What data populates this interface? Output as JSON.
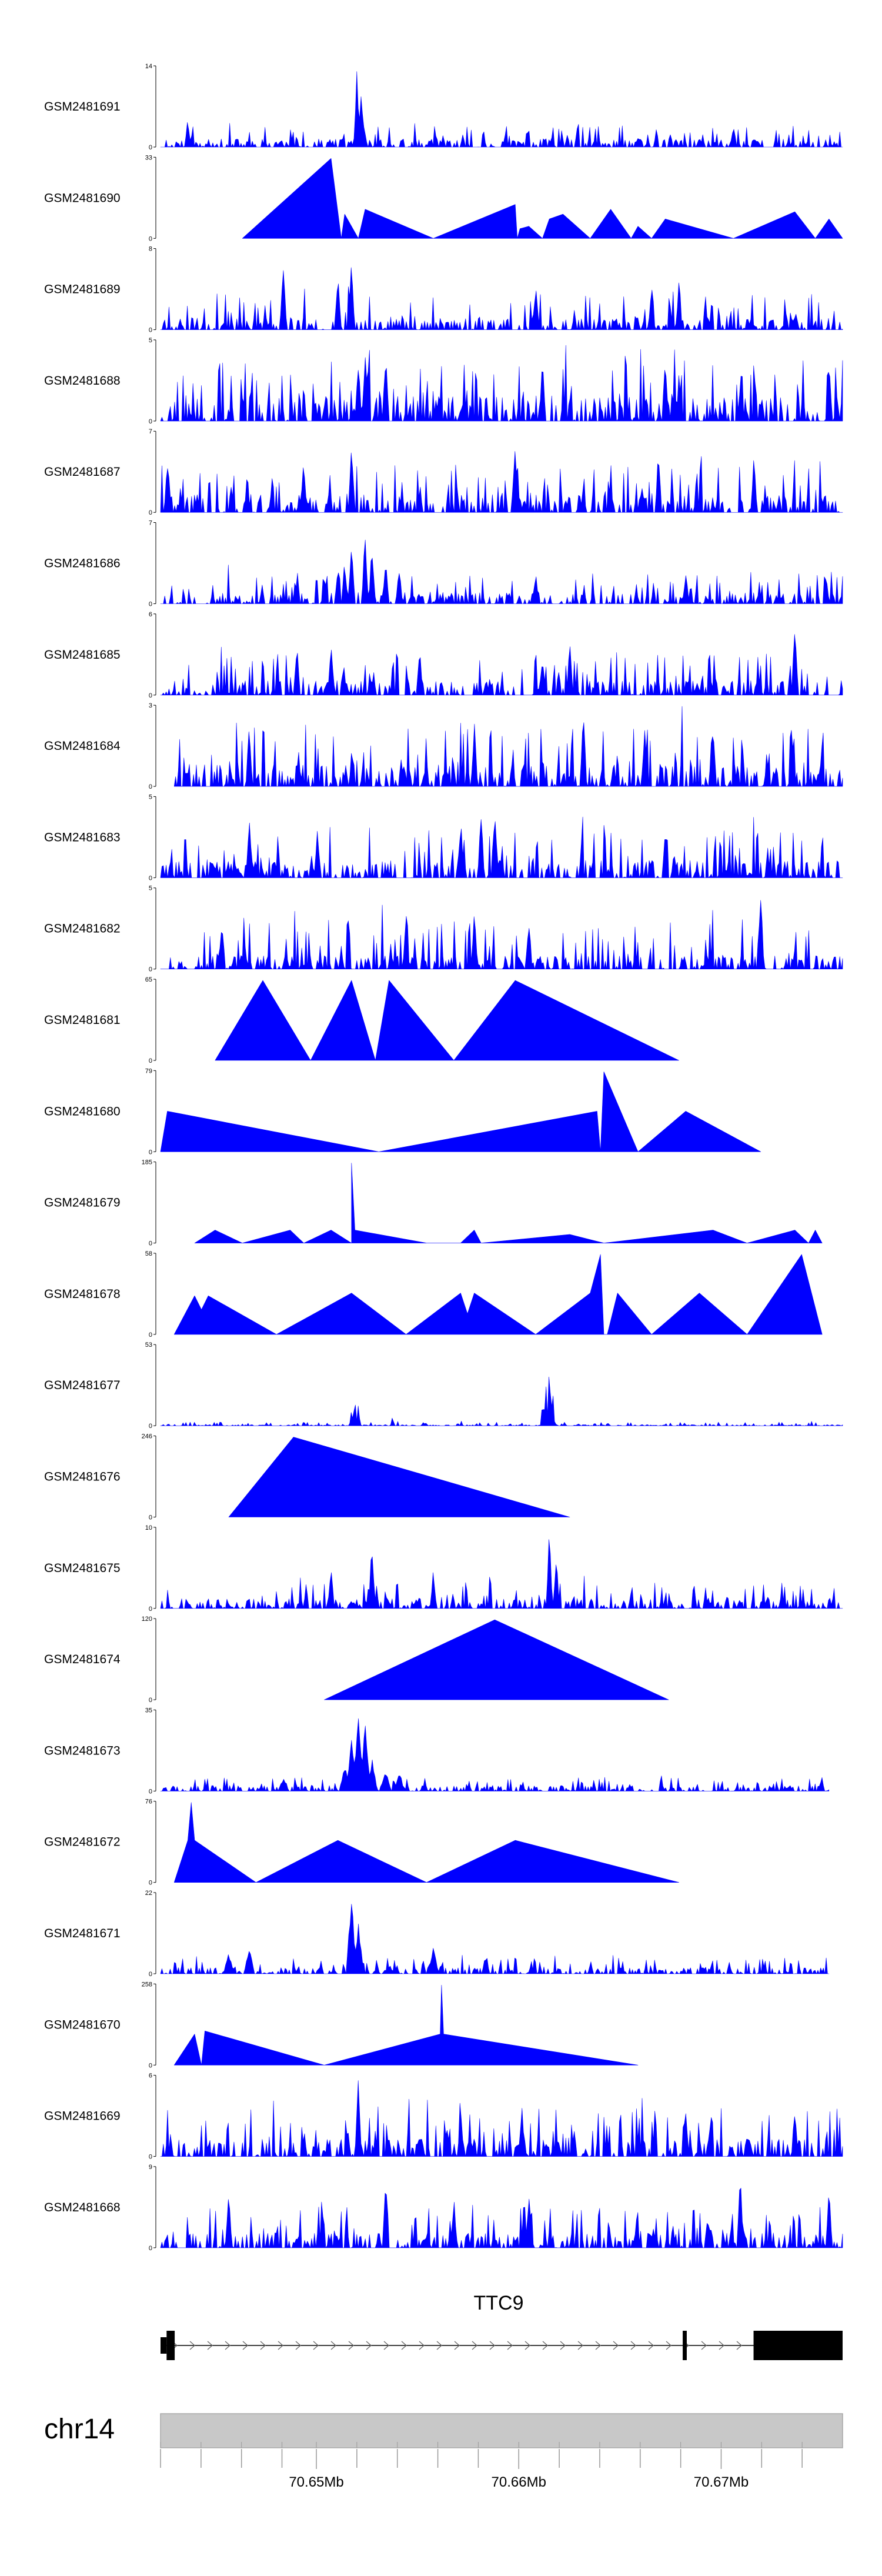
{
  "chart_data": {
    "type": "area",
    "title": "",
    "genome": {
      "chromosome": "chr14",
      "x_range_bp": [
        70642300,
        70676000
      ],
      "ticks": [
        {
          "pos": 70642300,
          "label": ""
        },
        {
          "pos": 70644300,
          "label": ""
        },
        {
          "pos": 70646300,
          "label": ""
        },
        {
          "pos": 70648300,
          "label": ""
        },
        {
          "pos": 70650000,
          "label": "70.65Mb"
        },
        {
          "pos": 70652000,
          "label": ""
        },
        {
          "pos": 70654000,
          "label": ""
        },
        {
          "pos": 70656000,
          "label": ""
        },
        {
          "pos": 70658000,
          "label": ""
        },
        {
          "pos": 70660000,
          "label": "70.66Mb"
        },
        {
          "pos": 70662000,
          "label": ""
        },
        {
          "pos": 70664000,
          "label": ""
        },
        {
          "pos": 70666000,
          "label": ""
        },
        {
          "pos": 70668000,
          "label": ""
        },
        {
          "pos": 70670000,
          "label": "70.67Mb"
        },
        {
          "pos": 70672000,
          "label": ""
        },
        {
          "pos": 70674000,
          "label": ""
        }
      ]
    },
    "gene": {
      "name": "TTC9",
      "strand": "+",
      "start": 70642300,
      "end": 70676000,
      "exons": [
        {
          "start": 70642300,
          "end": 70642600,
          "thick": false
        },
        {
          "start": 70642600,
          "end": 70643000,
          "thick": true
        },
        {
          "start": 70668100,
          "end": 70668300,
          "thick": true
        },
        {
          "start": 70671600,
          "end": 70676000,
          "thick": true
        }
      ]
    },
    "color": "#0000ff",
    "tracks": [
      {
        "name": "GSM2481691",
        "ymax": 14,
        "kind": "dense",
        "start": 0.0,
        "end": 1.0,
        "base": 1.2,
        "amp": 2.5,
        "seed": 11,
        "peaks": [
          [
            0.288,
            14
          ],
          [
            0.294,
            10
          ],
          [
            0.04,
            5
          ],
          [
            0.84,
            4
          ]
        ]
      },
      {
        "name": "GSM2481690",
        "ymax": 33,
        "kind": "sparse",
        "points": [
          [
            0.12,
            0
          ],
          [
            0.25,
            33
          ],
          [
            0.265,
            0
          ],
          [
            0.27,
            10
          ],
          [
            0.29,
            0
          ],
          [
            0.3,
            12
          ],
          [
            0.4,
            0
          ],
          [
            0.52,
            14
          ],
          [
            0.523,
            0
          ],
          [
            0.527,
            4
          ],
          [
            0.54,
            5
          ],
          [
            0.56,
            0
          ],
          [
            0.57,
            8
          ],
          [
            0.59,
            10
          ],
          [
            0.63,
            0
          ],
          [
            0.66,
            12
          ],
          [
            0.69,
            0
          ],
          [
            0.7,
            5
          ],
          [
            0.72,
            0
          ],
          [
            0.74,
            8
          ],
          [
            0.84,
            0
          ],
          [
            0.93,
            11
          ],
          [
            0.96,
            0
          ],
          [
            0.98,
            8
          ],
          [
            1.0,
            0
          ]
        ]
      },
      {
        "name": "GSM2481689",
        "ymax": 8,
        "kind": "dense",
        "start": 0.0,
        "end": 1.0,
        "base": 1.0,
        "amp": 2.6,
        "seed": 23,
        "peaks": [
          [
            0.18,
            8
          ],
          [
            0.28,
            7
          ],
          [
            0.26,
            6
          ],
          [
            0.55,
            5
          ],
          [
            0.76,
            5
          ],
          [
            0.72,
            5
          ]
        ]
      },
      {
        "name": "GSM2481688",
        "ymax": 5,
        "kind": "dense",
        "start": 0.0,
        "end": 1.0,
        "base": 1.3,
        "amp": 2.5,
        "seed": 37,
        "peaks": [
          [
            0.3,
            5
          ],
          [
            0.33,
            4.5
          ],
          [
            0.29,
            4.2
          ],
          [
            0.56,
            4.5
          ],
          [
            0.74,
            4
          ],
          [
            0.98,
            4
          ]
        ]
      },
      {
        "name": "GSM2481687",
        "ymax": 7,
        "kind": "dense",
        "start": 0.0,
        "end": 1.0,
        "base": 1.3,
        "amp": 2.8,
        "seed": 41,
        "peaks": [
          [
            0.28,
            7
          ],
          [
            0.52,
            6.5
          ],
          [
            0.73,
            5.5
          ],
          [
            0.01,
            4.5
          ],
          [
            0.87,
            5
          ],
          [
            0.21,
            5
          ]
        ]
      },
      {
        "name": "GSM2481686",
        "ymax": 7,
        "kind": "dense",
        "start": 0.0,
        "end": 1.0,
        "base": 0.8,
        "amp": 2.0,
        "seed": 53,
        "peaks": [
          [
            0.3,
            7
          ],
          [
            0.28,
            6
          ],
          [
            0.31,
            5.5
          ],
          [
            0.27,
            4
          ],
          [
            0.33,
            4
          ],
          [
            0.26,
            3.5
          ],
          [
            0.35,
            3.5
          ],
          [
            0.55,
            3
          ],
          [
            0.77,
            3
          ]
        ]
      },
      {
        "name": "GSM2481685",
        "ymax": 6,
        "kind": "dense",
        "start": 0.0,
        "end": 1.0,
        "base": 0.9,
        "amp": 2.2,
        "seed": 67,
        "peaks": [
          [
            0.93,
            6
          ],
          [
            0.25,
            4.5
          ],
          [
            0.2,
            4
          ],
          [
            0.56,
            3.5
          ],
          [
            0.38,
            4
          ],
          [
            0.6,
            4
          ]
        ]
      },
      {
        "name": "GSM2481684",
        "ymax": 3,
        "kind": "dense",
        "start": 0.02,
        "end": 1.0,
        "base": 0.7,
        "amp": 1.7,
        "seed": 71,
        "peaks": [
          [
            0.62,
            3
          ],
          [
            0.81,
            2.8
          ],
          [
            0.46,
            2.6
          ],
          [
            0.13,
            2.5
          ],
          [
            0.71,
            2.5
          ]
        ]
      },
      {
        "name": "GSM2481683",
        "ymax": 5,
        "kind": "dense",
        "start": 0.0,
        "end": 1.0,
        "base": 0.9,
        "amp": 2.1,
        "seed": 83,
        "peaks": [
          [
            0.49,
            5
          ],
          [
            0.44,
            4
          ],
          [
            0.47,
            4.5
          ],
          [
            0.13,
            4
          ],
          [
            0.23,
            3.5
          ],
          [
            0.74,
            3.5
          ]
        ]
      },
      {
        "name": "GSM2481682",
        "ymax": 5,
        "kind": "dense",
        "start": 0.0,
        "end": 1.0,
        "base": 0.7,
        "amp": 2.4,
        "seed": 97,
        "peaks": [
          [
            0.88,
            5
          ],
          [
            0.46,
            4
          ],
          [
            0.36,
            4
          ],
          [
            0.09,
            3.5
          ],
          [
            0.54,
            3.5
          ]
        ]
      },
      {
        "name": "GSM2481681",
        "ymax": 65,
        "kind": "sparse",
        "points": [
          [
            0.08,
            0
          ],
          [
            0.15,
            65
          ],
          [
            0.22,
            0
          ],
          [
            0.22,
            0
          ],
          [
            0.28,
            65
          ],
          [
            0.315,
            0
          ],
          [
            0.335,
            65
          ],
          [
            0.43,
            0
          ],
          [
            0.43,
            0
          ],
          [
            0.52,
            65
          ],
          [
            0.76,
            0
          ]
        ]
      },
      {
        "name": "GSM2481680",
        "ymax": 79,
        "kind": "sparse",
        "points": [
          [
            0.0,
            0
          ],
          [
            0.01,
            40
          ],
          [
            0.32,
            0
          ],
          [
            0.64,
            40
          ],
          [
            0.645,
            0
          ],
          [
            0.65,
            79
          ],
          [
            0.7,
            0
          ],
          [
            0.7,
            0
          ],
          [
            0.77,
            40
          ],
          [
            0.88,
            0
          ]
        ]
      },
      {
        "name": "GSM2481679",
        "ymax": 185,
        "kind": "sparse",
        "points": [
          [
            0.05,
            0
          ],
          [
            0.08,
            30
          ],
          [
            0.12,
            0
          ],
          [
            0.12,
            0
          ],
          [
            0.19,
            30
          ],
          [
            0.21,
            0
          ],
          [
            0.25,
            30
          ],
          [
            0.28,
            0
          ],
          [
            0.28,
            185
          ],
          [
            0.285,
            30
          ],
          [
            0.39,
            0
          ],
          [
            0.44,
            0
          ],
          [
            0.46,
            30
          ],
          [
            0.47,
            0
          ],
          [
            0.6,
            20
          ],
          [
            0.65,
            0
          ],
          [
            0.81,
            30
          ],
          [
            0.86,
            0
          ],
          [
            0.93,
            30
          ],
          [
            0.95,
            0
          ],
          [
            0.96,
            30
          ],
          [
            0.97,
            0
          ]
        ]
      },
      {
        "name": "GSM2481678",
        "ymax": 58,
        "kind": "sparse",
        "points": [
          [
            0.02,
            0
          ],
          [
            0.05,
            28
          ],
          [
            0.06,
            18
          ],
          [
            0.07,
            28
          ],
          [
            0.17,
            0
          ],
          [
            0.28,
            30
          ],
          [
            0.36,
            0
          ],
          [
            0.36,
            0
          ],
          [
            0.44,
            30
          ],
          [
            0.45,
            15
          ],
          [
            0.46,
            30
          ],
          [
            0.55,
            0
          ],
          [
            0.63,
            30
          ],
          [
            0.645,
            58
          ],
          [
            0.65,
            0
          ],
          [
            0.655,
            0
          ],
          [
            0.67,
            30
          ],
          [
            0.72,
            0
          ],
          [
            0.72,
            0
          ],
          [
            0.79,
            30
          ],
          [
            0.86,
            0
          ],
          [
            0.86,
            0
          ],
          [
            0.94,
            58
          ],
          [
            0.97,
            0
          ]
        ]
      },
      {
        "name": "GSM2481677",
        "ymax": 53,
        "kind": "dense",
        "start": 0.0,
        "end": 1.0,
        "base": 0.6,
        "amp": 1.8,
        "seed": 113,
        "width": 0.003,
        "peaks": [
          [
            0.285,
            20
          ],
          [
            0.28,
            12
          ],
          [
            0.29,
            14
          ],
          [
            0.57,
            53
          ],
          [
            0.565,
            35
          ],
          [
            0.575,
            30
          ],
          [
            0.56,
            18
          ],
          [
            0.34,
            6
          ]
        ]
      },
      {
        "name": "GSM2481676",
        "ymax": 246,
        "kind": "sparse",
        "points": [
          [
            0.1,
            0
          ],
          [
            0.195,
            246
          ],
          [
            0.6,
            0
          ]
        ]
      },
      {
        "name": "GSM2481675",
        "ymax": 10,
        "kind": "dense",
        "start": 0.0,
        "end": 1.0,
        "base": 1.0,
        "amp": 2.2,
        "seed": 127,
        "peaks": [
          [
            0.31,
            9
          ],
          [
            0.57,
            10
          ],
          [
            0.25,
            5.5
          ],
          [
            0.4,
            5
          ],
          [
            0.58,
            7
          ]
        ]
      },
      {
        "name": "GSM2481674",
        "ymax": 120,
        "kind": "sparse",
        "points": [
          [
            0.24,
            0
          ],
          [
            0.49,
            120
          ],
          [
            0.745,
            0
          ]
        ]
      },
      {
        "name": "GSM2481673",
        "ymax": 35,
        "kind": "dense",
        "start": 0.0,
        "end": 0.98,
        "base": 2.0,
        "amp": 4.0,
        "seed": 131,
        "width": 0.008,
        "peaks": [
          [
            0.29,
            35
          ],
          [
            0.28,
            25
          ],
          [
            0.3,
            30
          ],
          [
            0.27,
            12
          ],
          [
            0.31,
            15
          ],
          [
            0.33,
            10
          ],
          [
            0.35,
            8
          ],
          [
            0.18,
            6
          ]
        ]
      },
      {
        "name": "GSM2481672",
        "ymax": 76,
        "kind": "sparse",
        "points": [
          [
            0.02,
            0
          ],
          [
            0.04,
            40
          ],
          [
            0.045,
            76
          ],
          [
            0.05,
            40
          ],
          [
            0.14,
            0
          ],
          [
            0.26,
            40
          ],
          [
            0.39,
            0
          ],
          [
            0.52,
            40
          ],
          [
            0.76,
            0
          ]
        ]
      },
      {
        "name": "GSM2481671",
        "ymax": 22,
        "kind": "dense",
        "start": 0.0,
        "end": 0.98,
        "base": 1.4,
        "amp": 3.0,
        "seed": 149,
        "width": 0.008,
        "peaks": [
          [
            0.28,
            22
          ],
          [
            0.29,
            15
          ],
          [
            0.13,
            8
          ],
          [
            0.4,
            8
          ],
          [
            0.1,
            6
          ]
        ]
      },
      {
        "name": "GSM2481670",
        "ymax": 258,
        "kind": "sparse",
        "points": [
          [
            0.02,
            0
          ],
          [
            0.05,
            100
          ],
          [
            0.06,
            0
          ],
          [
            0.065,
            110
          ],
          [
            0.24,
            0
          ],
          [
            0.41,
            100
          ],
          [
            0.412,
            258
          ],
          [
            0.415,
            100
          ],
          [
            0.7,
            0
          ]
        ]
      },
      {
        "name": "GSM2481669",
        "ymax": 6,
        "kind": "dense",
        "start": 0.0,
        "end": 1.0,
        "base": 1.1,
        "amp": 2.5,
        "seed": 163,
        "peaks": [
          [
            0.29,
            6
          ],
          [
            0.77,
            4
          ],
          [
            0.93,
            4
          ],
          [
            0.53,
            4
          ],
          [
            0.44,
            3.5
          ]
        ]
      },
      {
        "name": "GSM2481668",
        "ymax": 9,
        "kind": "dense",
        "start": 0.0,
        "end": 1.0,
        "base": 1.4,
        "amp": 3.2,
        "seed": 179,
        "peaks": [
          [
            0.33,
            8.5
          ],
          [
            0.85,
            8.5
          ],
          [
            0.1,
            7.5
          ],
          [
            0.54,
            7
          ],
          [
            0.98,
            7
          ],
          [
            0.43,
            6
          ]
        ]
      }
    ]
  }
}
